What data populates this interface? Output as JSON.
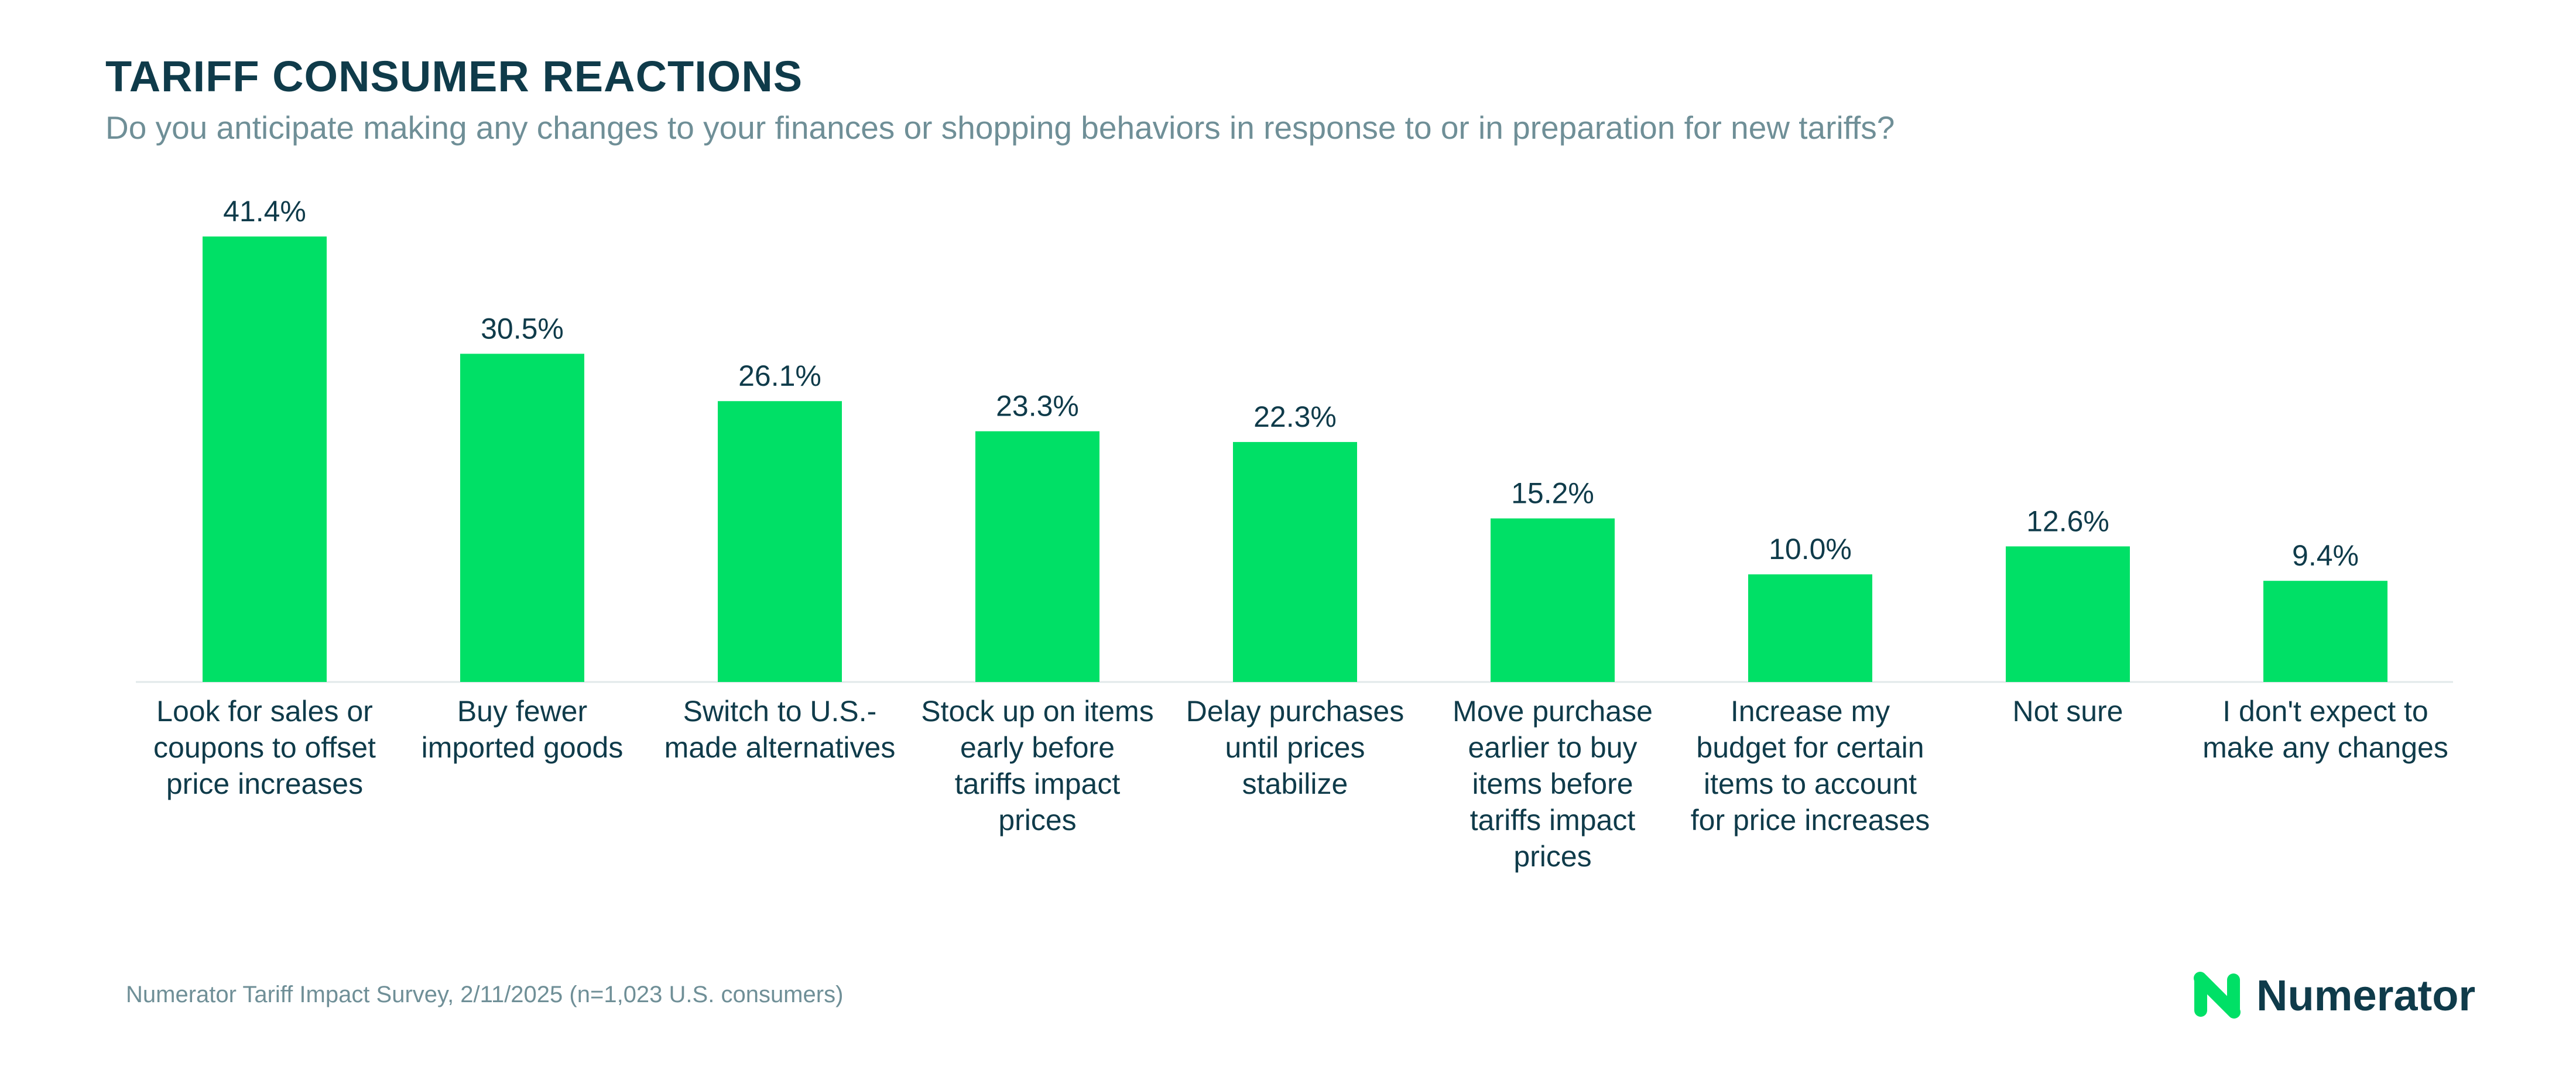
{
  "header": {
    "title": "TARIFF CONSUMER REACTIONS",
    "subtitle": "Do you anticipate making any changes to your finances or shopping behaviors in response to or in preparation for new tariffs?"
  },
  "footer": {
    "source": "Numerator Tariff Impact Survey, 2/11/2025 (n=1,023 U.S. consumers)",
    "logo_text": "Numerator"
  },
  "colors": {
    "bar": "#00e066",
    "text_dark": "#0f3b4a",
    "text_muted": "#6f8f97",
    "baseline": "#e2e8ea",
    "logo_icon": "#00e066"
  },
  "icons": {
    "logo": "numerator-n-logo-icon"
  },
  "chart_data": {
    "type": "bar",
    "categories": [
      "Look for sales or coupons to offset price increases",
      "Buy fewer imported goods",
      "Switch to U.S.-made alternatives",
      "Stock up on items early before tariffs impact prices",
      "Delay purchases until prices stabilize",
      "Move purchase earlier to buy items before tariffs impact prices",
      "Increase my budget for certain items to account for price increases",
      "Not sure",
      "I don't expect to make any changes"
    ],
    "category_lines": [
      [
        "Look for sales or",
        "coupons to offset",
        "price increases"
      ],
      [
        "Buy fewer",
        "imported goods"
      ],
      [
        "Switch to U.S.-",
        "made alternatives"
      ],
      [
        "Stock up on items",
        "early before",
        "tariffs impact",
        "prices"
      ],
      [
        "Delay purchases",
        "until prices",
        "stabilize"
      ],
      [
        "Move purchase",
        "earlier to buy",
        "items before",
        "tariffs impact",
        "prices"
      ],
      [
        "Increase my",
        "budget for certain",
        "items to account",
        "for price increases"
      ],
      [
        "Not sure"
      ],
      [
        "I don't expect to",
        "make any changes"
      ]
    ],
    "values": [
      41.4,
      30.5,
      26.1,
      23.3,
      22.3,
      15.2,
      10.0,
      12.6,
      9.4
    ],
    "value_labels": [
      "41.4%",
      "30.5%",
      "26.1%",
      "23.3%",
      "22.3%",
      "15.2%",
      "10.0%",
      "12.6%",
      "9.4%"
    ],
    "ylim": [
      0,
      41.4
    ],
    "grid": false,
    "legend": "none"
  }
}
